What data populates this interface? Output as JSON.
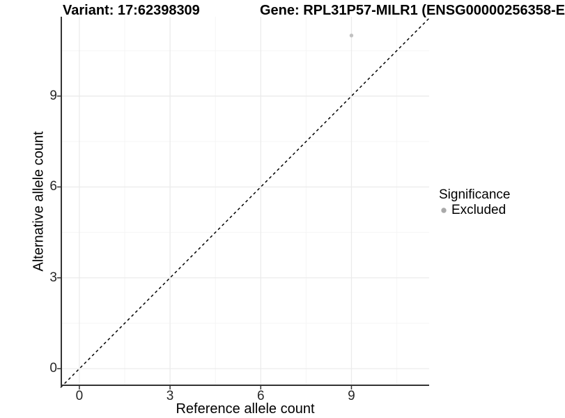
{
  "chart_data": {
    "type": "scatter",
    "titles": {
      "left": "Variant: 17:62398309",
      "right": "Gene: RPL31P57-MILR1 (ENSG00000256358-E"
    },
    "xlabel": "Reference allele count",
    "ylabel": "Alternative allele count",
    "xlim": [
      -0.62,
      11.57
    ],
    "ylim": [
      -0.57,
      11.62
    ],
    "x_major_ticks": [
      0,
      3,
      6,
      9
    ],
    "y_major_ticks": [
      0,
      3,
      6,
      9
    ],
    "x_minor_ticks": [
      1.5,
      4.5,
      7.5,
      10.5
    ],
    "y_minor_ticks": [
      1.5,
      4.5,
      7.5,
      10.5
    ],
    "grid": true,
    "reference_line": {
      "slope": 1,
      "intercept": 0,
      "style": "dashed",
      "color": "#000000"
    },
    "series": [
      {
        "name": "Excluded",
        "color": "#c1c1c1",
        "points": [
          {
            "x": 9,
            "y": 11
          }
        ]
      }
    ],
    "legend": {
      "title": "Significance",
      "position": "right",
      "items": [
        {
          "label": "Excluded",
          "color": "#a9a9a9",
          "marker": "circle"
        }
      ]
    },
    "colors": {
      "grid_major": "#ebebeb",
      "grid_minor": "#f5f5f5",
      "axis_line": "#333333",
      "tick_mark": "#333333",
      "tick_text": "#262626"
    }
  }
}
